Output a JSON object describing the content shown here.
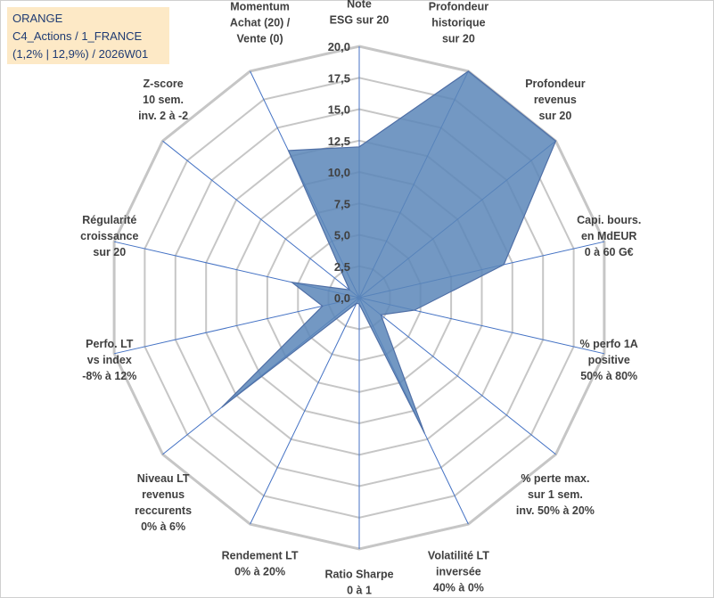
{
  "chart_data": {
    "type": "radar",
    "title_lines": [
      "ORANGE",
      "C4_Actions / 1_FRANCE",
      "(1,2% | 12,9%) / 2026W01"
    ],
    "rmin": 0,
    "rmax": 20,
    "tick_values": [
      0,
      2.5,
      5,
      7.5,
      10,
      12.5,
      15,
      17.5,
      20
    ],
    "tick_labels": [
      "0,0",
      "2,5",
      "5,0",
      "7,5",
      "10,0",
      "12,5",
      "15,0",
      "17,5",
      "20,0"
    ],
    "axes": [
      {
        "label": [
          "Note",
          "ESG sur 20"
        ],
        "value": 12
      },
      {
        "label": [
          "Profondeur",
          "historique",
          "sur 20"
        ],
        "value": 20
      },
      {
        "label": [
          "Profondeur",
          "revenus",
          "sur 20"
        ],
        "value": 20
      },
      {
        "label": [
          "Capi. bours.",
          "en MdEUR",
          "0 à 60 G€"
        ],
        "value": 11.8
      },
      {
        "label": [
          "% perfo 1A",
          "positive",
          "50% à 80%"
        ],
        "value": 4.5
      },
      {
        "label": [
          "% perte max.",
          "sur 1 sem.",
          "inv. 50% à 20%"
        ],
        "value": 2.2
      },
      {
        "label": [
          "Volatilité LT",
          "inversée",
          "40% à 0%"
        ],
        "value": 12
      },
      {
        "label": [
          "Ratio Sharpe",
          "0 à 1"
        ],
        "value": 0.5
      },
      {
        "label": [
          "Rendement LT",
          "0% à 20%"
        ],
        "value": 0.5
      },
      {
        "label": [
          "Niveau LT",
          "revenus",
          "reccurents",
          "0% à 6%"
        ],
        "value": 14
      },
      {
        "label": [
          "Perfo. LT",
          "vs index",
          "-8% à 12%"
        ],
        "value": 3
      },
      {
        "label": [
          "Régularité",
          "croissance",
          "sur 20"
        ],
        "value": 5.5
      },
      {
        "label": [
          "Z-score",
          "10 sem.",
          "inv. 2 à -2"
        ],
        "value": 1
      },
      {
        "label": [
          "Momentum",
          "Achat (20) /",
          "Vente (0)"
        ],
        "value": 13
      }
    ],
    "colors": {
      "fill": "#5b86b8",
      "stroke": "#4f6fa6",
      "grid": "#c6c6c6",
      "spoke": "#4472c4",
      "legend_bg": "#fde9c6",
      "legend_text": "#1f3b73"
    }
  }
}
